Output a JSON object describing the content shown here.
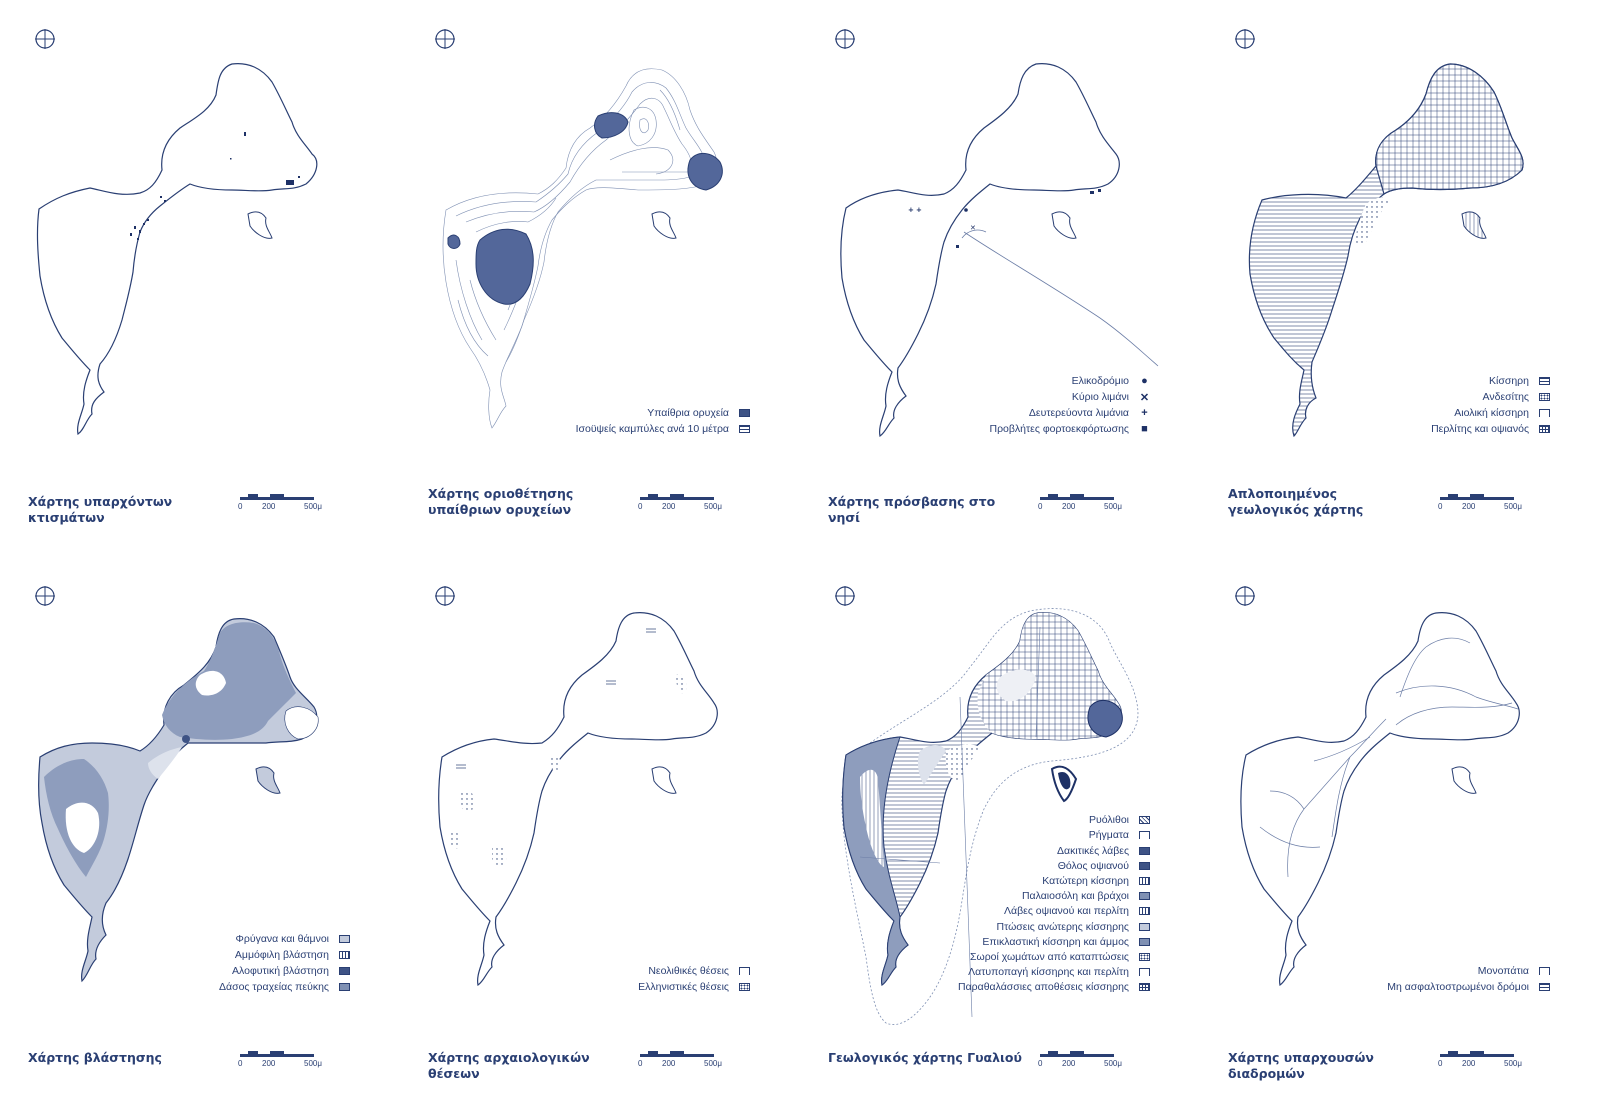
{
  "colors": {
    "ink": "#2a3f73",
    "dark_fill": "#3e5385",
    "mid_fill": "#8e9dbd",
    "light_fill": "#c3cbdc"
  },
  "icons": {
    "north": "compass-crosshair",
    "heliport": "filled-circle",
    "main_port": "x-mark",
    "secondary_port": "plus-mark",
    "loading_pier": "filled-square"
  },
  "scale_bar": {
    "l0": "0",
    "l1": "200",
    "l2": "500μ"
  },
  "panels": [
    {
      "title_lines": [
        "Χάρτης υπαρχόντων κτισμάτων"
      ],
      "legend": []
    },
    {
      "title_lines": [
        "Χάρτης οριοθέτησης",
        "υπαίθριων ορυχείων"
      ],
      "legend": [
        {
          "label": "Υπαίθρια ορυχεία",
          "swatch": "solid"
        },
        {
          "label": "Ισοϋψείς καμπύλες ανά 10 μέτρα",
          "swatch": "hatch"
        }
      ]
    },
    {
      "title_lines": [
        "Χάρτης πρόσβασης στο νησί"
      ],
      "legend": [
        {
          "label": "Ελικοδρόμιο",
          "swatch": "marker",
          "glyph": "●"
        },
        {
          "label": "Κύριο λιμάνι",
          "swatch": "marker",
          "glyph": "✕"
        },
        {
          "label": "Δευτερεύοντα λιμάνια",
          "swatch": "marker",
          "glyph": "+"
        },
        {
          "label": "Προβλήτες φορτοεκφόρτωσης",
          "swatch": "marker",
          "glyph": "■"
        }
      ]
    },
    {
      "title_lines": [
        "Απλοποιημένος",
        "γεωλογικός χάρτης"
      ],
      "legend": [
        {
          "label": "Κίσσηρη",
          "swatch": "hatch"
        },
        {
          "label": "Ανδεσίτης",
          "swatch": "dots"
        },
        {
          "label": "Αιολική κίσσηρη",
          "swatch": "open"
        },
        {
          "label": "Περλίτης και οψιανός",
          "swatch": "grid"
        }
      ]
    },
    {
      "title_lines": [
        "Χάρτης βλάστησης"
      ],
      "legend": [
        {
          "label": "Φρύγανα και θάμνοι",
          "swatch": "light"
        },
        {
          "label": "Αμμόφιλη βλάστηση",
          "swatch": "vhatch"
        },
        {
          "label": "Αλοφυτική βλάστηση",
          "swatch": "solid"
        },
        {
          "label": "Δάσος τραχείας πεύκης",
          "swatch": "mid"
        }
      ]
    },
    {
      "title_lines": [
        "Χάρτης αρχαιολογικών θέσεων"
      ],
      "legend": [
        {
          "label": "Νεολιθικές θέσεις",
          "swatch": "open"
        },
        {
          "label": "Ελληνιστικές θέσεις",
          "swatch": "dots"
        }
      ]
    },
    {
      "title_lines": [
        "Γεωλογικός χάρτης Γυαλιού"
      ],
      "legend": [
        {
          "label": "Ρυόλιθοι",
          "swatch": "diag"
        },
        {
          "label": "Ρήγματα",
          "swatch": "open"
        },
        {
          "label": "Δακιτικές λάβες",
          "swatch": "solid"
        },
        {
          "label": "Θόλος οψιανού",
          "swatch": "solid"
        },
        {
          "label": "Κατώτερη κίσσηρη",
          "swatch": "vhatch"
        },
        {
          "label": "Παλαιοσόλη και βράχοι",
          "swatch": "mid"
        },
        {
          "label": "Λάβες οψιανού και περλίτη",
          "swatch": "vhatch"
        },
        {
          "label": "Πτώσεις ανώτερης κίσσηρης",
          "swatch": "light"
        },
        {
          "label": "Επικλαστική κίσσηρη και άμμος",
          "swatch": "mid"
        },
        {
          "label": "Σωροί χωμάτων από καταπτώσεις",
          "swatch": "dots"
        },
        {
          "label": "Λατυποπαγή κίσσηρης και περλίτη",
          "swatch": "open"
        },
        {
          "label": "Παραθαλάσσιες αποθέσεις κίσσηρης",
          "swatch": "grid"
        }
      ]
    },
    {
      "title_lines": [
        "Χάρτης υπαρχουσών διαδρομών"
      ],
      "legend": [
        {
          "label": "Μονοπάτια",
          "swatch": "open"
        },
        {
          "label": "Μη ασφαλτοστρωμένοι δρόμοι",
          "swatch": "hatch"
        }
      ]
    }
  ]
}
